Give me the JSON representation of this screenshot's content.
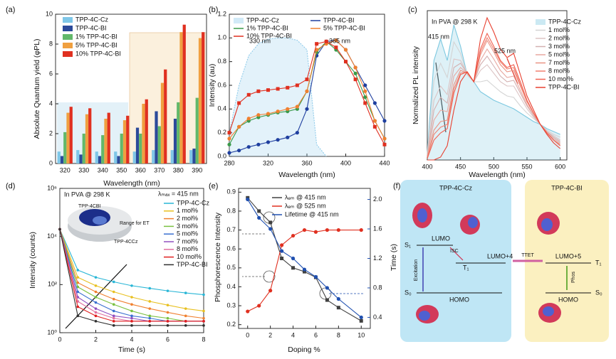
{
  "chart_data": [
    {
      "type": "bar",
      "panel": "(a)",
      "x_label": "Wavelength (nm)",
      "y_label": "Absolute Quantum yield (φPL)",
      "categories": [
        320,
        330,
        340,
        350,
        360,
        370,
        380,
        390
      ],
      "ylim": [
        0,
        10
      ],
      "yticks": [
        0,
        2,
        4,
        6,
        8,
        10
      ],
      "series": [
        {
          "name": "TPP-4C-Cz",
          "color": "#7fc7e8",
          "values": [
            0.8,
            0.9,
            0.8,
            0.8,
            0.8,
            0.9,
            0.9,
            0.9
          ]
        },
        {
          "name": "TPP-4C-BI",
          "color": "#2c4a9a",
          "values": [
            0.5,
            0.6,
            0.5,
            0.5,
            2.4,
            3.5,
            3.0,
            1.0
          ]
        },
        {
          "name": "1% TPP-4C-BI",
          "color": "#62b86a",
          "values": [
            2.1,
            2.0,
            1.9,
            2.0,
            2.0,
            2.5,
            4.1,
            4.4
          ]
        },
        {
          "name": "5% TPP-4C-BI",
          "color": "#f0a040",
          "values": [
            3.4,
            3.3,
            3.0,
            2.9,
            4.0,
            5.4,
            8.8,
            8.4
          ]
        },
        {
          "name": "10% TPP-4C-BI",
          "color": "#e03020",
          "values": [
            3.8,
            3.7,
            3.4,
            3.2,
            4.3,
            6.3,
            9.3,
            8.8
          ]
        }
      ]
    },
    {
      "type": "line",
      "panel": "(b)",
      "x_label": "Wavelength (nm)",
      "y_label": "Intensity (au)",
      "annotations": [
        "330 nm",
        "365 nm"
      ],
      "x": [
        280,
        290,
        300,
        310,
        320,
        330,
        340,
        350,
        360,
        370,
        380,
        390,
        400,
        410,
        420,
        430,
        440
      ],
      "xlim": [
        280,
        440
      ],
      "xticks": [
        280,
        320,
        360,
        400,
        440
      ],
      "ylim": [
        0,
        1.2
      ],
      "yticks": [
        {
          "value": 0,
          "label": "0.0"
        },
        0.2,
        0.4,
        0.6,
        0.8,
        {
          "value": 1,
          "label": "1.0"
        },
        1.2
      ],
      "series": [
        {
          "name": "TPP-4C-Cz",
          "color": "#8fcbea",
          "area": true,
          "marker": "none",
          "values": [
            0.2,
            0.6,
            0.85,
            0.95,
            0.99,
            1.0,
            1.0,
            0.98,
            0.9,
            0.1,
            0.0,
            null,
            null,
            null,
            null,
            null,
            null
          ]
        },
        {
          "name": "TPP-4C-BI",
          "color": "#1f3f9f",
          "marker": "circle",
          "values": [
            0.03,
            0.05,
            0.08,
            0.1,
            0.12,
            0.14,
            0.16,
            0.2,
            0.4,
            0.85,
            0.97,
            0.98,
            0.9,
            0.75,
            0.6,
            0.45,
            0.3
          ]
        },
        {
          "name": "1% TPP-4C-BI",
          "color": "#3a9a4a",
          "marker": "circle",
          "values": [
            0.1,
            0.25,
            0.3,
            0.33,
            0.35,
            0.37,
            0.38,
            0.4,
            0.55,
            0.88,
            0.97,
            0.9,
            0.8,
            0.7,
            0.5,
            0.3,
            0.15
          ]
        },
        {
          "name": "5% TPP-4C-BI",
          "color": "#f08030",
          "marker": "circle",
          "values": [
            0.15,
            0.25,
            0.32,
            0.35,
            0.36,
            0.38,
            0.4,
            0.42,
            0.55,
            0.9,
            0.95,
            0.98,
            0.9,
            0.75,
            0.55,
            0.3,
            0.15
          ]
        },
        {
          "name": "10% TPP-4C-BI",
          "color": "#e03020",
          "marker": "square",
          "values": [
            0.2,
            0.45,
            0.52,
            0.55,
            0.56,
            0.57,
            0.58,
            0.6,
            0.65,
            0.95,
            0.97,
            0.92,
            0.8,
            0.65,
            0.45,
            0.25,
            0.1
          ]
        }
      ]
    },
    {
      "type": "line",
      "panel": "(c)",
      "x_label": "Wavelength (nm)",
      "y_label": "Normalized PL intensity",
      "annotations": [
        "In PVA @ 298 K",
        "415 nm",
        "525 nm"
      ],
      "x": [
        400,
        410,
        420,
        430,
        440,
        450,
        460,
        470,
        480,
        490,
        500,
        510,
        520,
        530,
        540,
        550,
        560,
        570,
        580,
        590,
        600
      ],
      "xlim": [
        400,
        610
      ],
      "xticks": [
        400,
        450,
        500,
        550,
        600
      ],
      "ylim": [
        0,
        1.05
      ],
      "series": [
        {
          "name": "TPP-4C-Cz",
          "color": "#7cc8e0",
          "area": true,
          "values": [
            0.05,
            0.7,
            0.85,
            0.7,
            0.95,
            0.8,
            0.6,
            0.55,
            0.48,
            0.45,
            0.42,
            0.4,
            0.38,
            0.36,
            0.33,
            0.3,
            0.27,
            0.25,
            0.22,
            0.2,
            0.18
          ]
        },
        {
          "name": "1 mol%",
          "color": "#d4d4d4",
          "values": [
            0.04,
            0.56,
            0.68,
            0.58,
            0.83,
            0.75,
            0.6,
            0.55,
            0.55,
            0.56,
            0.52,
            0.48,
            0.45,
            0.44,
            0.38,
            0.33,
            0.29,
            0.25,
            0.21,
            0.18,
            0.16
          ]
        },
        {
          "name": "2 mol%",
          "color": "#dcc4c4",
          "values": [
            0.03,
            0.42,
            0.52,
            0.46,
            0.71,
            0.7,
            0.61,
            0.55,
            0.63,
            0.67,
            0.61,
            0.55,
            0.52,
            0.52,
            0.44,
            0.36,
            0.3,
            0.25,
            0.2,
            0.17,
            0.14
          ]
        },
        {
          "name": "3 mol%",
          "color": "#d4b0b0",
          "values": [
            0.03,
            0.35,
            0.44,
            0.4,
            0.65,
            0.68,
            0.61,
            0.55,
            0.67,
            0.73,
            0.66,
            0.59,
            0.55,
            0.56,
            0.47,
            0.38,
            0.31,
            0.25,
            0.2,
            0.16,
            0.13
          ]
        },
        {
          "name": "5 mol%",
          "color": "#e8a8a0",
          "values": [
            0.02,
            0.28,
            0.35,
            0.34,
            0.59,
            0.65,
            0.61,
            0.55,
            0.7,
            0.78,
            0.71,
            0.63,
            0.58,
            0.59,
            0.49,
            0.39,
            0.32,
            0.25,
            0.2,
            0.15,
            0.12
          ]
        },
        {
          "name": "7 mol%",
          "color": "#ea9484",
          "values": [
            0.02,
            0.21,
            0.27,
            0.28,
            0.53,
            0.63,
            0.61,
            0.55,
            0.74,
            0.84,
            0.76,
            0.67,
            0.62,
            0.63,
            0.52,
            0.41,
            0.33,
            0.25,
            0.19,
            0.14,
            0.11
          ]
        },
        {
          "name": "8 mol%",
          "color": "#f08070",
          "values": [
            0.01,
            0.18,
            0.23,
            0.25,
            0.5,
            0.61,
            0.62,
            0.55,
            0.76,
            0.86,
            0.78,
            0.69,
            0.64,
            0.65,
            0.53,
            0.41,
            0.33,
            0.25,
            0.19,
            0.14,
            0.1
          ]
        },
        {
          "name": "10 mol%",
          "color": "#f06050",
          "values": [
            0.01,
            0.14,
            0.19,
            0.22,
            0.47,
            0.6,
            0.62,
            0.55,
            0.78,
            0.89,
            0.8,
            0.7,
            0.65,
            0.67,
            0.55,
            0.42,
            0.33,
            0.25,
            0.19,
            0.14,
            0.1
          ]
        },
        {
          "name": "TPP-4C-BI",
          "color": "#e84030",
          "values": [
            0,
            0,
            0.02,
            0.1,
            0.35,
            0.55,
            0.62,
            0.55,
            0.85,
            1.0,
            0.9,
            0.78,
            0.72,
            0.75,
            0.6,
            0.45,
            0.35,
            0.25,
            0.18,
            0.12,
            0.08
          ]
        }
      ]
    },
    {
      "type": "line",
      "panel": "(d)",
      "x_label": "Time (s)",
      "y_label": "Intensity (counts)",
      "log_y": true,
      "annotations": [
        "In PVA @ 298 K",
        "λₘₐₓ = 415 nm",
        "TPP-4CBI",
        "Range for ET",
        "TPP-4CCz"
      ],
      "x": [
        0,
        1,
        2,
        3,
        4,
        5,
        6,
        7,
        8
      ],
      "xlim": [
        0,
        8
      ],
      "xticks": [
        0,
        2,
        4,
        6,
        8
      ],
      "ylim": [
        1,
        1000000
      ],
      "yticks": [
        {
          "value": 1,
          "label": "10⁰"
        },
        {
          "value": 100,
          "label": "10²"
        },
        {
          "value": 10000,
          "label": "10⁴"
        },
        {
          "value": 1000000,
          "label": "10⁶"
        }
      ],
      "series": [
        {
          "name": "TPP-4C-Cz",
          "color": "#29b6d6",
          "marker": "dot",
          "values": [
            20000,
            400,
            200,
            130,
            90,
            70,
            55,
            45,
            38
          ]
        },
        {
          "name": "1 mol%",
          "color": "#e8c020",
          "marker": "dot",
          "values": [
            20000,
            200,
            90,
            50,
            30,
            20,
            14,
            10,
            8
          ]
        },
        {
          "name": "2 mol%",
          "color": "#f08030",
          "marker": "dot",
          "values": [
            20000,
            120,
            50,
            25,
            15,
            10,
            7,
            5,
            4
          ]
        },
        {
          "name": "3 mol%",
          "color": "#7ac040",
          "marker": "dot",
          "values": [
            20000,
            80,
            30,
            15,
            8,
            5,
            4,
            3,
            3
          ]
        },
        {
          "name": "5 mol%",
          "color": "#3a70d0",
          "marker": "dot",
          "values": [
            20000,
            50,
            18,
            8,
            5,
            4,
            3,
            3,
            3
          ]
        },
        {
          "name": "7 mol%",
          "color": "#9050c0",
          "marker": "dot",
          "values": [
            20000,
            30,
            10,
            5,
            4,
            3,
            3,
            3,
            3
          ]
        },
        {
          "name": "8 mol%",
          "color": "#e070a0",
          "marker": "dot",
          "values": [
            20000,
            20,
            7,
            4,
            3,
            3,
            3,
            3,
            3
          ]
        },
        {
          "name": "10 mol%",
          "color": "#e02020",
          "marker": "dot",
          "values": [
            20000,
            12,
            5,
            3,
            3,
            3,
            3,
            3,
            3
          ]
        },
        {
          "name": "TPP-4C-BI",
          "color": "#303030",
          "marker": "dot",
          "values": [
            20000,
            5,
            3,
            2,
            2,
            2,
            2,
            2,
            2
          ]
        }
      ]
    },
    {
      "type": "line",
      "panel": "(e)",
      "x_label": "Doping %",
      "y_label": "Phosphorescence Intensity",
      "y2_label": "Time (s)",
      "x": [
        0,
        1,
        2,
        3,
        4,
        5,
        6,
        7,
        8,
        10
      ],
      "xlim": [
        -0.8,
        10.8
      ],
      "xticks": [
        0,
        2,
        4,
        6,
        8,
        10
      ],
      "ylim": [
        0.18,
        0.92
      ],
      "yticks": [
        0.2,
        0.3,
        0.4,
        0.5,
        0.6,
        0.7,
        0.8,
        0.9
      ],
      "y2lim": [
        0.25,
        2.15
      ],
      "y2ticks": [
        0.4,
        0.8,
        1.2,
        1.6,
        {
          "value": 2,
          "label": "2.0"
        }
      ],
      "series": [
        {
          "name": "λₑₘ @ 415 nm",
          "color": "#404040",
          "marker": "square",
          "values": [
            0.87,
            0.8,
            0.74,
            0.55,
            0.5,
            0.48,
            0.45,
            0.33,
            0.29,
            0.22
          ]
        },
        {
          "name": "λₑₘ @ 525 nm",
          "color": "#e03020",
          "marker": "circle",
          "values": [
            0.27,
            0.3,
            0.38,
            0.62,
            0.67,
            0.7,
            0.69,
            0.7,
            0.7,
            0.7
          ]
        },
        {
          "name": "Lifetime @ 415 nm",
          "color": "#2050b0",
          "marker": "circle",
          "axis": "y2",
          "values": [
            2.0,
            1.75,
            1.6,
            1.3,
            1.2,
            1.05,
            0.95,
            0.8,
            0.65,
            0.4
          ]
        }
      ]
    }
  ],
  "diagram": {
    "panel": "(f)",
    "left": {
      "title": "TPP-4C-Cz",
      "lumo": "LUMO",
      "s1": "S₁",
      "isc": "ISC",
      "t1": "T₁",
      "lumo4": "LUMO+4",
      "excitation": "Excitation",
      "s0": "S₀",
      "homo": "HOMO"
    },
    "ttet": "TTET",
    "right": {
      "title": "TPP-4C-BI",
      "lumo5": "LUMO+5",
      "t1": "T₁",
      "phos": "Phos",
      "s0": "S₀",
      "homo": "HOMO"
    }
  }
}
